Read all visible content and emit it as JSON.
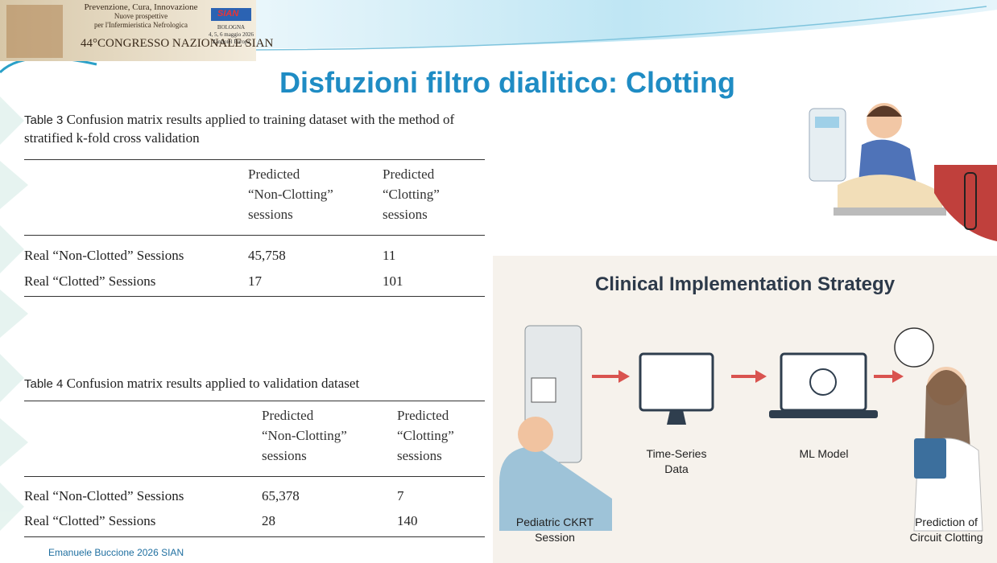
{
  "header": {
    "banner_lines": [
      "Prevenzione, Cura, Innovazione",
      "Nuove prospettive",
      "per l'Infermieristica Nefrologica"
    ],
    "congress": "44°CONGRESSO NAZIONALE SIAN",
    "badge": "SIAN",
    "venue_lines": [
      "BOLOGNA",
      "4, 5, 6 maggio 2026",
      "Zanhotel Europa"
    ]
  },
  "title": "Disfuzioni filtro dialitico: Clotting",
  "tables": [
    {
      "label": "Table 3",
      "caption": "Confusion matrix results applied to training dataset with the method of stratified k-fold cross validation",
      "column_headers": [
        [
          "Predicted",
          "“Non-Clotting”",
          "sessions"
        ],
        [
          "Predicted",
          "“Clotting”",
          "sessions"
        ]
      ],
      "rows": [
        [
          "Real “Non-Clotted” Sessions",
          "45,758",
          "11"
        ],
        [
          "Real “Clotted” Sessions",
          "17",
          "101"
        ]
      ]
    },
    {
      "label": "Table 4",
      "caption": "Confusion matrix results applied to validation dataset",
      "column_headers": [
        [
          "Predicted",
          "“Non-Clotting”",
          "sessions"
        ],
        [
          "Predicted",
          "“Clotting”",
          "sessions"
        ]
      ],
      "rows": [
        [
          "Real “Non-Clotted” Sessions",
          "65,378",
          "7"
        ],
        [
          "Real “Clotted” Sessions",
          "28",
          "140"
        ]
      ]
    }
  ],
  "infographic": {
    "title": "Clinical Implementation Strategy",
    "steps": [
      [
        "Pediatric CKRT",
        "Session"
      ],
      [
        "Time-Series",
        "Data"
      ],
      [
        "ML Model"
      ],
      [
        "Prediction of",
        "Circuit Clotting"
      ]
    ]
  },
  "footer": "Emanuele Buccione 2026 SIAN"
}
